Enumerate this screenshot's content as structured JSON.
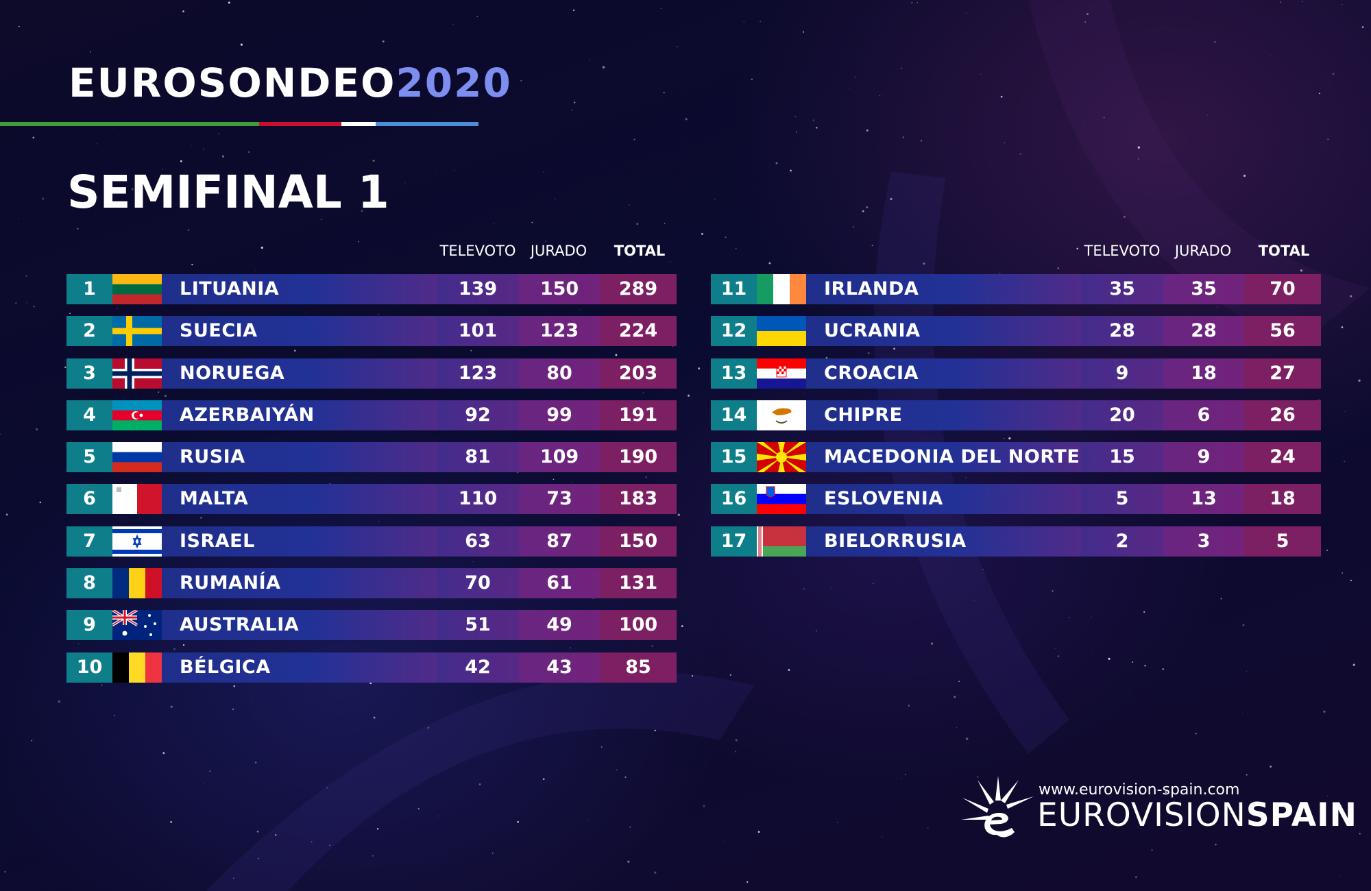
{
  "header": {
    "brand": "EUROSONDEO",
    "year": "2020",
    "subtitle": "SEMIFINAL 1",
    "bar_colors": [
      "#3f9d3a",
      "#c8102e",
      "#ffffff",
      "#4a8fd8"
    ]
  },
  "columns": {
    "televote": "TELEVOTO",
    "jury": "JURADO",
    "total": "TOTAL"
  },
  "rows": [
    {
      "rank": "1",
      "country": "LITUANIA",
      "televote": "139",
      "jury": "150",
      "total": "289",
      "flag": "lithuania-flag-icon"
    },
    {
      "rank": "2",
      "country": "SUECIA",
      "televote": "101",
      "jury": "123",
      "total": "224",
      "flag": "sweden-flag-icon"
    },
    {
      "rank": "3",
      "country": "NORUEGA",
      "televote": "123",
      "jury": "80",
      "total": "203",
      "flag": "norway-flag-icon"
    },
    {
      "rank": "4",
      "country": "AZERBAIYÁN",
      "televote": "92",
      "jury": "99",
      "total": "191",
      "flag": "azerbaijan-flag-icon"
    },
    {
      "rank": "5",
      "country": "RUSIA",
      "televote": "81",
      "jury": "109",
      "total": "190",
      "flag": "russia-flag-icon"
    },
    {
      "rank": "6",
      "country": "MALTA",
      "televote": "110",
      "jury": "73",
      "total": "183",
      "flag": "malta-flag-icon"
    },
    {
      "rank": "7",
      "country": "ISRAEL",
      "televote": "63",
      "jury": "87",
      "total": "150",
      "flag": "israel-flag-icon"
    },
    {
      "rank": "8",
      "country": "RUMANÍA",
      "televote": "70",
      "jury": "61",
      "total": "131",
      "flag": "romania-flag-icon"
    },
    {
      "rank": "9",
      "country": "AUSTRALIA",
      "televote": "51",
      "jury": "49",
      "total": "100",
      "flag": "australia-flag-icon"
    },
    {
      "rank": "10",
      "country": "BÉLGICA",
      "televote": "42",
      "jury": "43",
      "total": "85",
      "flag": "belgium-flag-icon"
    },
    {
      "rank": "11",
      "country": "IRLANDA",
      "televote": "35",
      "jury": "35",
      "total": "70",
      "flag": "ireland-flag-icon"
    },
    {
      "rank": "12",
      "country": "UCRANIA",
      "televote": "28",
      "jury": "28",
      "total": "56",
      "flag": "ukraine-flag-icon"
    },
    {
      "rank": "13",
      "country": "CROACIA",
      "televote": "9",
      "jury": "18",
      "total": "27",
      "flag": "croatia-flag-icon"
    },
    {
      "rank": "14",
      "country": "CHIPRE",
      "televote": "20",
      "jury": "6",
      "total": "26",
      "flag": "cyprus-flag-icon"
    },
    {
      "rank": "15",
      "country": "MACEDONIA DEL NORTE",
      "televote": "15",
      "jury": "9",
      "total": "24",
      "flag": "north-macedonia-flag-icon"
    },
    {
      "rank": "16",
      "country": "ESLOVENIA",
      "televote": "5",
      "jury": "13",
      "total": "18",
      "flag": "slovenia-flag-icon"
    },
    {
      "rank": "17",
      "country": "BIELORRUSIA",
      "televote": "2",
      "jury": "3",
      "total": "5",
      "flag": "belarus-flag-icon"
    }
  ],
  "footer": {
    "url": "www.eurovision-spain.com",
    "logo_regular": "EUROVISION",
    "logo_bold": "SPAIN"
  }
}
